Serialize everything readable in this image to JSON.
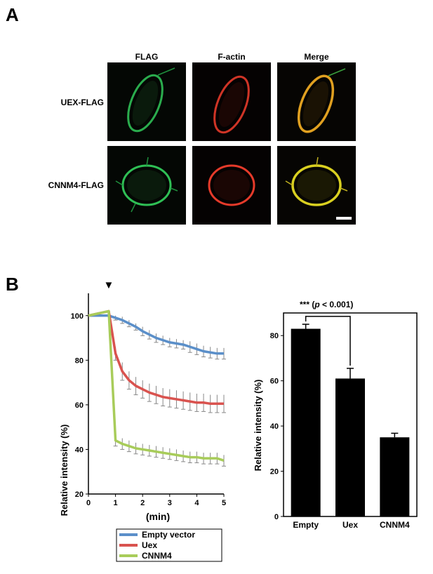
{
  "panel_a": {
    "letter": "A",
    "columns": [
      "FLAG",
      "F-actin",
      "Merge"
    ],
    "rows": [
      "UEX-FLAG",
      "CNNM4-FLAG"
    ]
  },
  "panel_b": {
    "letter": "B"
  },
  "chart_data": [
    {
      "type": "line",
      "xlabel": "(min)",
      "ylabel": "Relative intensity (%)",
      "xlim": [
        0,
        5
      ],
      "ylim": [
        20,
        110
      ],
      "xticks": [
        0,
        1,
        2,
        3,
        4,
        5
      ],
      "yticks": [
        20,
        40,
        60,
        80,
        100
      ],
      "annotation": "▼",
      "annotation_x": 0.75,
      "x": [
        0,
        0.75,
        1,
        1.25,
        1.5,
        1.75,
        2,
        2.25,
        2.5,
        2.75,
        3,
        3.25,
        3.5,
        3.75,
        4,
        4.25,
        4.5,
        4.75,
        5
      ],
      "series": [
        {
          "name": "Empty vector",
          "color": "#5b8fc9",
          "values": [
            100,
            100,
            99,
            98,
            96.5,
            95,
            93,
            91.5,
            90,
            89,
            88,
            87.5,
            87,
            86,
            85,
            84,
            83.5,
            83,
            83
          ],
          "errors": [
            0,
            0,
            1,
            1.5,
            1.5,
            1.5,
            2,
            2,
            2,
            2,
            2,
            2,
            2,
            2.5,
            2.5,
            2.5,
            2.5,
            2.5,
            2.5
          ]
        },
        {
          "name": "Uex",
          "color": "#d9534f",
          "values": [
            100,
            102,
            83,
            75,
            71,
            68.5,
            67,
            65.5,
            64.5,
            63.5,
            63,
            62.5,
            62,
            61.5,
            61,
            61,
            60.5,
            60.5,
            60.5
          ],
          "errors": [
            0,
            0,
            3,
            4,
            4,
            4,
            4,
            4,
            4,
            4,
            4,
            4,
            4,
            4,
            4,
            4,
            4,
            4,
            4
          ]
        },
        {
          "name": "CNNM4",
          "color": "#a8cc5a",
          "values": [
            100,
            102,
            44,
            42.5,
            41.5,
            40.5,
            40,
            39.5,
            39,
            38.5,
            38,
            37.5,
            37,
            36.5,
            36.5,
            36,
            36,
            36,
            35
          ],
          "errors": [
            0,
            0,
            2.5,
            2.5,
            2.5,
            2.5,
            2.5,
            2.5,
            2.5,
            2.5,
            2.5,
            2.5,
            2.5,
            2.5,
            2.5,
            2.5,
            2.5,
            2.5,
            2.5
          ]
        }
      ],
      "legend": "below"
    },
    {
      "type": "bar",
      "ylabel": "Relative intensity (%)",
      "ylim": [
        0,
        90
      ],
      "yticks": [
        0,
        20,
        40,
        60,
        80
      ],
      "categories": [
        "Empty",
        "Uex",
        "CNNM4"
      ],
      "values": [
        83,
        61,
        35
      ],
      "errors": [
        2,
        4.5,
        1.8
      ],
      "significance": {
        "stars": "***",
        "p_prefix": "(",
        "p_symbol": "p",
        "p_value": " < 0.001)",
        "between": [
          "Empty",
          "Uex"
        ]
      }
    }
  ]
}
